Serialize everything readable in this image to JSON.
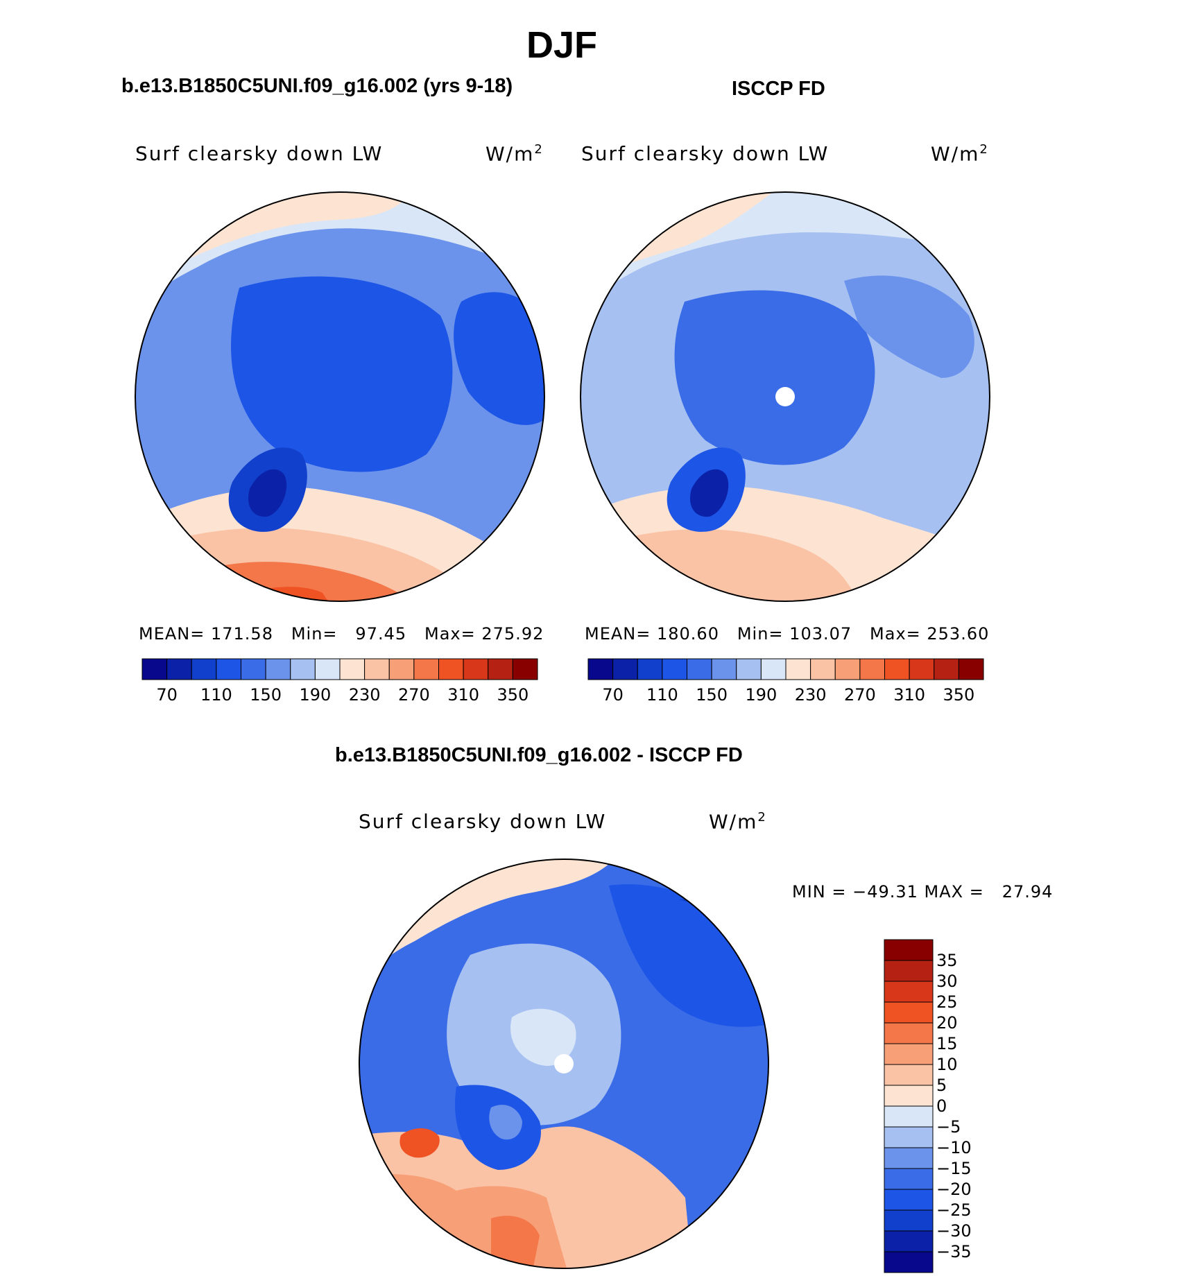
{
  "figure": {
    "title": "DJF",
    "panels": [
      {
        "case_title": "b.e13.B1850C5UNI.f09_g16.002 (yrs 9-18)",
        "variable": "Surf clearsky down LW",
        "units": "W/m",
        "units_sup": "2",
        "stats": "MEAN= 171.58   Min=   97.45   Max= 275.92"
      },
      {
        "case_title": "ISCCP FD",
        "variable": "Surf clearsky down LW",
        "units": "W/m",
        "units_sup": "2",
        "stats": "MEAN= 180.60   Min= 103.07   Max= 253.60"
      },
      {
        "case_title": "b.e13.B1850C5UNI.f09_g16.002 - ISCCP FD",
        "variable": "Surf clearsky down LW",
        "units": "W/m",
        "units_sup": "2",
        "stats": "MIN = −49.31 MAX =   27.94"
      }
    ],
    "abs_colorbar": {
      "colors": [
        "#08088c",
        "#0b22a8",
        "#1140cc",
        "#1d55e6",
        "#3a6ce8",
        "#6b93ec",
        "#a6c0f2",
        "#d9e6f7",
        "#fde4d2",
        "#fbc3a6",
        "#f7a078",
        "#f4774a",
        "#ef5223",
        "#d8371a",
        "#b52213",
        "#880000"
      ],
      "tick_labels": [
        "70",
        "110",
        "150",
        "190",
        "230",
        "270",
        "310",
        "350"
      ]
    },
    "diff_colorbar": {
      "colors": [
        "#880000",
        "#b52213",
        "#d8371a",
        "#ef5223",
        "#f4774a",
        "#f7a078",
        "#fbc3a6",
        "#fde4d2",
        "#d9e6f7",
        "#a6c0f2",
        "#6b93ec",
        "#3a6ce8",
        "#1d55e6",
        "#1140cc",
        "#0b22a8",
        "#08088c"
      ],
      "tick_labels": [
        "35",
        "30",
        "25",
        "20",
        "15",
        "10",
        "5",
        "0",
        "−5",
        "−10",
        "−15",
        "−20",
        "−25",
        "−30",
        "−35"
      ]
    }
  }
}
